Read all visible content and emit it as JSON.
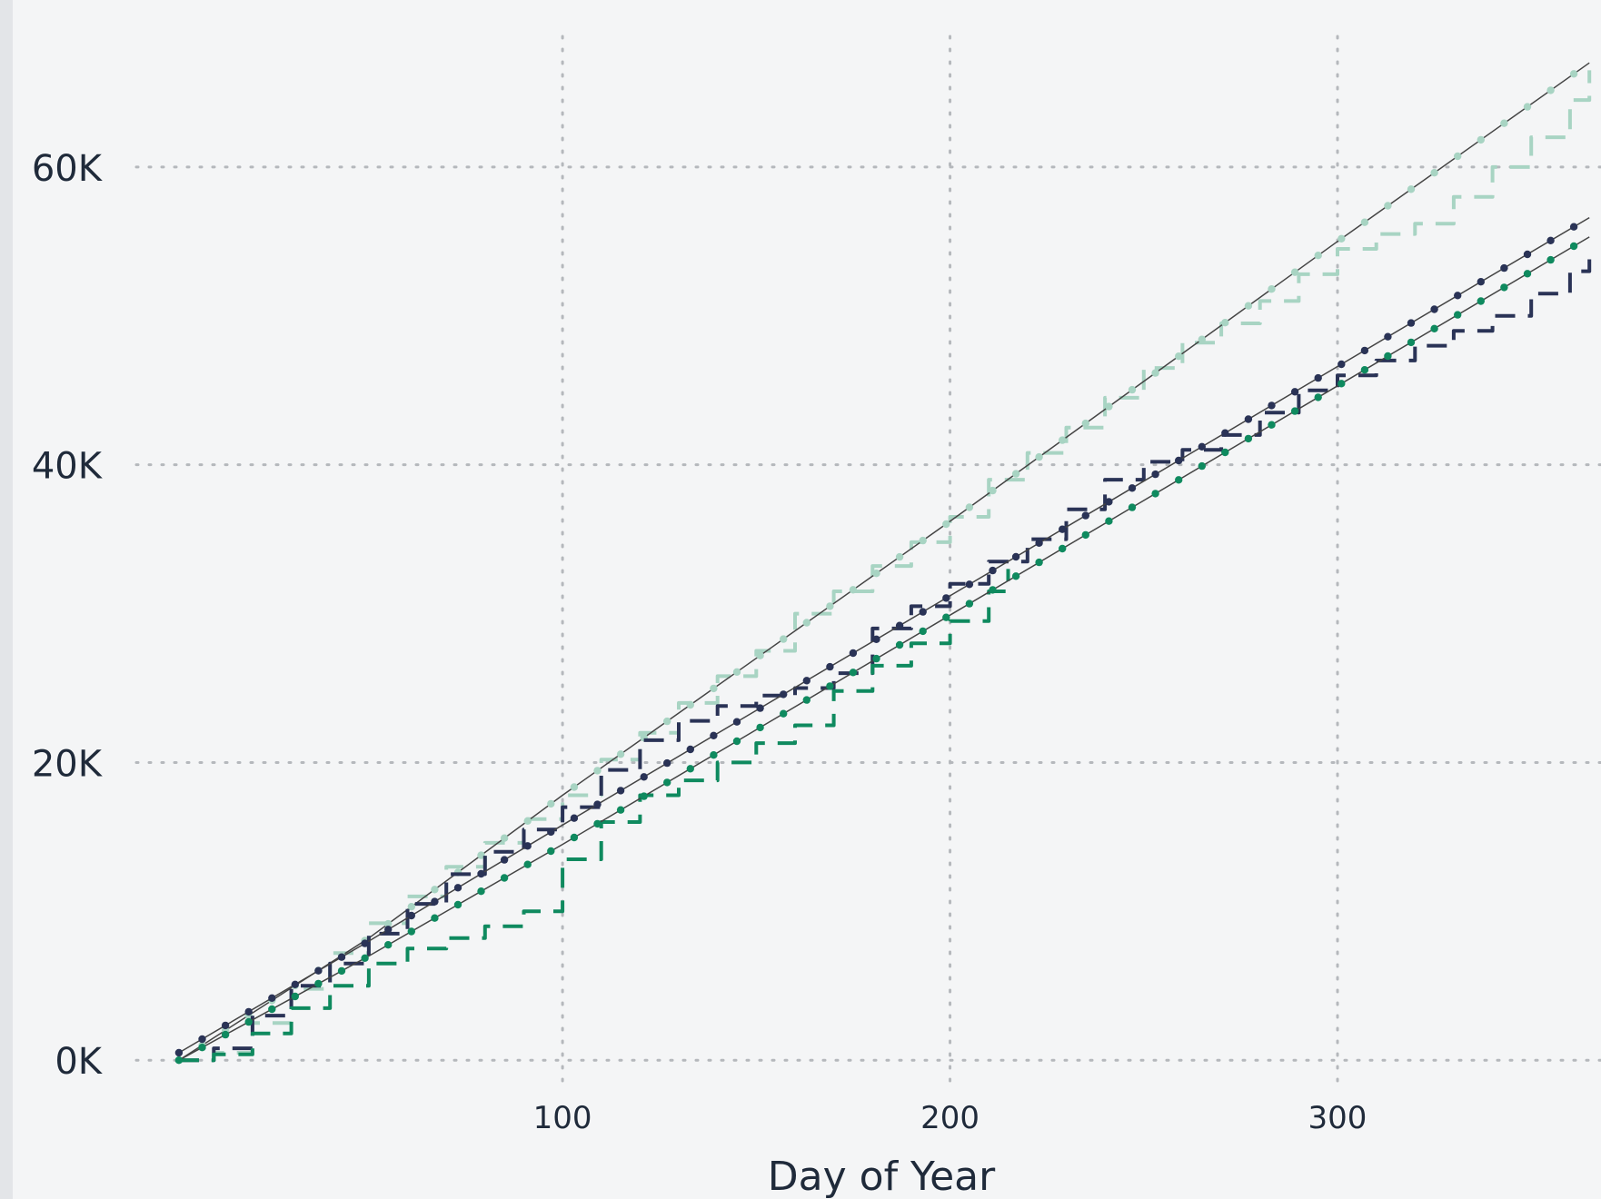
{
  "chart_data": {
    "type": "line",
    "title": "",
    "xlabel": "Day of Year",
    "ylabel": "",
    "xlim": [
      -10,
      368
    ],
    "ylim": [
      -2000,
      70000
    ],
    "x_ticks": [
      100,
      200,
      300
    ],
    "x_tick_labels": [
      "100",
      "200",
      "300"
    ],
    "y_ticks": [
      0,
      20000,
      40000,
      60000
    ],
    "y_tick_labels": [
      "0K",
      "20K",
      "40K",
      "60K"
    ],
    "grid": true,
    "legend": "none",
    "colors": {
      "light": "#a8d4c3",
      "navy": "#2a3356",
      "green": "#0f8a5f",
      "trend": "#444444",
      "grid": "#b5b8bc"
    },
    "series": [
      {
        "role": "actual",
        "color": "#a8d4c3",
        "style": "dashed-step",
        "x": [
          1,
          10,
          20,
          30,
          40,
          50,
          60,
          70,
          80,
          90,
          100,
          110,
          120,
          130,
          140,
          150,
          160,
          170,
          180,
          190,
          200,
          210,
          220,
          230,
          240,
          250,
          260,
          270,
          280,
          290,
          300,
          310,
          320,
          330,
          340,
          350,
          360,
          365
        ],
        "y": [
          0,
          500,
          2500,
          4800,
          7200,
          9200,
          11000,
          13000,
          14600,
          16200,
          17800,
          20200,
          22000,
          24000,
          25800,
          27500,
          30000,
          31500,
          33200,
          34800,
          36500,
          39000,
          40800,
          42500,
          44500,
          46500,
          48200,
          49500,
          51000,
          52800,
          54500,
          55500,
          56200,
          58000,
          60000,
          62000,
          64500,
          66500
        ]
      },
      {
        "role": "trend",
        "color": "#a8d4c3",
        "style": "dotted-trend",
        "x": [
          1,
          50,
          100,
          150,
          200,
          250,
          300,
          365
        ],
        "y": [
          0,
          8200,
          17800,
          27000,
          36200,
          45600,
          55000,
          67000
        ]
      },
      {
        "role": "actual",
        "color": "#2a3356",
        "style": "dashed-step",
        "x": [
          1,
          10,
          20,
          30,
          40,
          50,
          60,
          70,
          80,
          90,
          100,
          110,
          120,
          130,
          140,
          150,
          160,
          170,
          180,
          190,
          200,
          210,
          220,
          230,
          240,
          250,
          260,
          270,
          280,
          290,
          300,
          310,
          320,
          330,
          340,
          350,
          360,
          365
        ],
        "y": [
          0,
          800,
          3000,
          5000,
          6500,
          8500,
          10500,
          12500,
          14000,
          15500,
          17000,
          19500,
          21500,
          22800,
          23800,
          24500,
          25000,
          26000,
          29000,
          30500,
          32000,
          33500,
          35000,
          37000,
          39000,
          40200,
          41000,
          42000,
          43500,
          45000,
          46000,
          47000,
          48000,
          49000,
          50000,
          51500,
          53000,
          54000
        ]
      },
      {
        "role": "trend",
        "color": "#2a3356",
        "style": "dotted-trend",
        "x": [
          1,
          50,
          100,
          150,
          200,
          250,
          300,
          365
        ],
        "y": [
          500,
          8000,
          15800,
          23500,
          31200,
          38900,
          46600,
          56600
        ]
      },
      {
        "role": "actual",
        "color": "#0f8a5f",
        "style": "dashed-step",
        "x": [
          1,
          10,
          20,
          30,
          40,
          50,
          60,
          70,
          80,
          90,
          100,
          110,
          120,
          130,
          140,
          150,
          160,
          170,
          180,
          190,
          200,
          210,
          215
        ],
        "y": [
          0,
          400,
          1800,
          3500,
          5000,
          6500,
          7500,
          8200,
          9000,
          10000,
          13500,
          16000,
          17800,
          18800,
          20000,
          21300,
          22500,
          24800,
          26500,
          28000,
          29500,
          31500,
          33000
        ]
      },
      {
        "role": "trend",
        "color": "#0f8a5f",
        "style": "dotted-trend",
        "x": [
          1,
          50,
          100,
          150,
          200,
          250,
          300,
          365
        ],
        "y": [
          0,
          7000,
          14500,
          22200,
          29900,
          37600,
          45300,
          55300
        ]
      }
    ]
  }
}
